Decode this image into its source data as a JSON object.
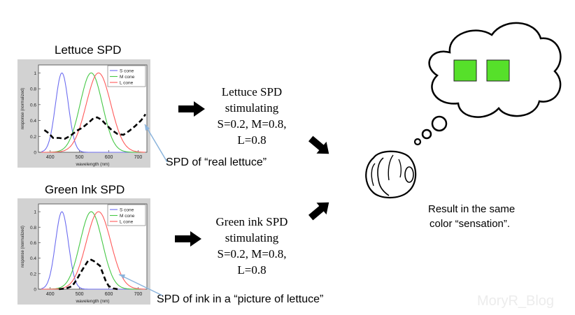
{
  "panels": [
    {
      "title": "Lettuce SPD",
      "legend": [
        "S cone",
        "M cone",
        "L cone"
      ],
      "xlabel": "wavelength (nm)",
      "ylabel": "response (normalized)",
      "xticks": [
        "400",
        "500",
        "600",
        "700"
      ],
      "yticks": [
        "0",
        "0.2",
        "0.4",
        "0.6",
        "0.8",
        "1"
      ],
      "spd": [
        [
          380,
          0.28
        ],
        [
          395,
          0.24
        ],
        [
          410,
          0.18
        ],
        [
          430,
          0.18
        ],
        [
          450,
          0.17
        ],
        [
          470,
          0.21
        ],
        [
          490,
          0.27
        ],
        [
          510,
          0.31
        ],
        [
          530,
          0.37
        ],
        [
          545,
          0.42
        ],
        [
          560,
          0.44
        ],
        [
          575,
          0.41
        ],
        [
          590,
          0.35
        ],
        [
          610,
          0.28
        ],
        [
          630,
          0.23
        ],
        [
          650,
          0.22
        ],
        [
          670,
          0.27
        ],
        [
          690,
          0.33
        ],
        [
          710,
          0.4
        ],
        [
          720,
          0.45
        ],
        [
          725,
          0.48
        ]
      ]
    },
    {
      "title": "Green Ink SPD",
      "legend": [
        "S cone",
        "M cone",
        "L cone"
      ],
      "xlabel": "wavelength (nm)",
      "ylabel": "response (normalized)",
      "xticks": [
        "400",
        "500",
        "600",
        "700"
      ],
      "yticks": [
        "0",
        "0.2",
        "0.4",
        "0.6",
        "0.8",
        "1"
      ],
      "spd": [
        [
          430,
          0.0
        ],
        [
          455,
          0.01
        ],
        [
          475,
          0.04
        ],
        [
          490,
          0.12
        ],
        [
          505,
          0.22
        ],
        [
          518,
          0.3
        ],
        [
          530,
          0.37
        ],
        [
          540,
          0.38
        ],
        [
          550,
          0.36
        ],
        [
          560,
          0.33
        ],
        [
          570,
          0.3
        ],
        [
          580,
          0.2
        ],
        [
          590,
          0.1
        ],
        [
          600,
          0.04
        ],
        [
          615,
          0.01
        ],
        [
          630,
          0.0
        ]
      ]
    }
  ],
  "texts": {
    "stim_top": [
      "Lettuce SPD",
      "stimulating",
      "S=0.2, M=0.8,",
      "L=0.8"
    ],
    "stim_bottom": [
      "Green ink SPD",
      "stimulating",
      "S=0.2, M=0.8,",
      "L=0.8"
    ],
    "note_top": "SPD of “real lettuce”",
    "note_bottom": "SPD of ink in a “picture of lettuce”",
    "result": [
      "Result in the same",
      "color “sensation”."
    ],
    "watermark": "MoryR_Blog"
  },
  "colors": {
    "s_cone": "#6c6cf0",
    "m_cone": "#46c846",
    "l_cone": "#ff5a5a",
    "spd": "#000000",
    "panel_bg": "#d2d2d2",
    "square": "#56e02a",
    "pointer_line": "#8bb4dc"
  },
  "icons": [
    "right-arrow-icon",
    "diagonal-arrow-icon",
    "thought-cloud-icon",
    "head-icon"
  ]
}
